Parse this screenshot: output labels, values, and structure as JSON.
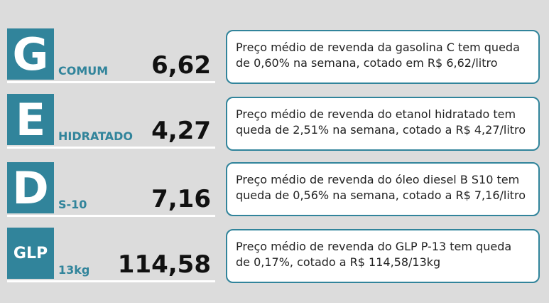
{
  "rows": [
    {
      "letter": "G",
      "label": "COMUM",
      "price": "6,62",
      "description": [
        "Preço médio de revenda da gasolina C tem queda",
        "de 0,60% na semana, cotado em R$ 6,62/litro"
      ]
    },
    {
      "letter": "E",
      "label": "HIDRATADO",
      "price": "4,27",
      "description": [
        "Preço médio de revenda do etanol hidratado tem",
        "queda de 2,51% na semana, cotado a R$ 4,27/litro"
      ]
    },
    {
      "letter": "D",
      "label": "S-10",
      "price": "7,16",
      "description": [
        "Preço médio de revenda do óleo diesel B S10 tem",
        "queda de 0,56% na semana, cotado a R$ 7,16/litro"
      ]
    },
    {
      "letter": "GLP",
      "label": "13kg",
      "price": "114,58",
      "description": [
        "Preço médio de revenda do GLP P-13 tem queda",
        "de 0,17%, cotado a R$ 114,58/13kg"
      ]
    }
  ]
}
